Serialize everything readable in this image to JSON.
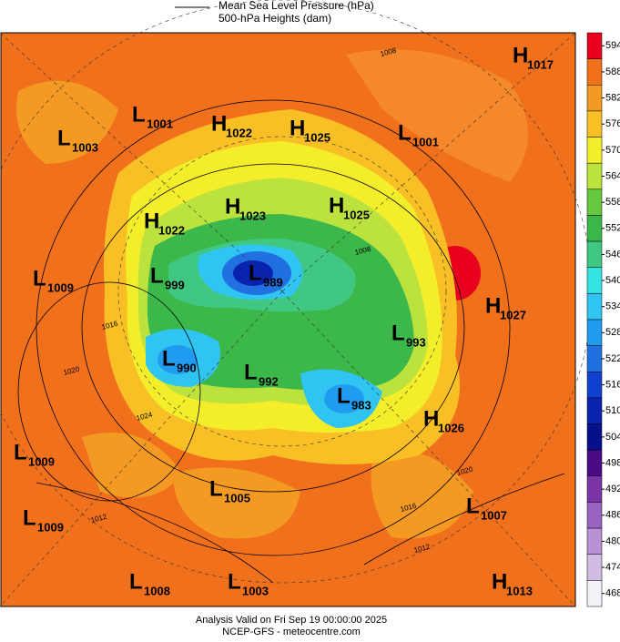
{
  "header": {
    "legend_line": "Mean Sea Level Pressure (hPa)",
    "legend_fill": "500-hPa Heights (dam)"
  },
  "colorbar": {
    "ticks": [
      594,
      588,
      582,
      576,
      570,
      564,
      558,
      552,
      546,
      540,
      534,
      528,
      522,
      516,
      510,
      504,
      498,
      492,
      486,
      480,
      474,
      468
    ],
    "colors": [
      "#e8001e",
      "#f0701c",
      "#f49a22",
      "#f8c024",
      "#f4ee2a",
      "#bce23e",
      "#66c83e",
      "#3cb84a",
      "#40c882",
      "#34e2e2",
      "#30c4f2",
      "#1f9cf0",
      "#2070e0",
      "#1040d0",
      "#0a22b0",
      "#06108a",
      "#4a0a82",
      "#7a34a8",
      "#9a62c2",
      "#b892d4",
      "#d2bce2",
      "#f4f2f8"
    ]
  },
  "centers": [
    {
      "kind": "H",
      "value": 1017
    },
    {
      "kind": "L",
      "value": 1001
    },
    {
      "kind": "L",
      "value": 1003
    },
    {
      "kind": "H",
      "value": 1022
    },
    {
      "kind": "H",
      "value": 1025
    },
    {
      "kind": "L",
      "value": 1001
    },
    {
      "kind": "H",
      "value": 1023
    },
    {
      "kind": "H",
      "value": 1025
    },
    {
      "kind": "H",
      "value": 1022
    },
    {
      "kind": "L",
      "value": 1009
    },
    {
      "kind": "L",
      "value": 999
    },
    {
      "kind": "L",
      "value": 989
    },
    {
      "kind": "H",
      "value": 1027
    },
    {
      "kind": "L",
      "value": 993
    },
    {
      "kind": "L",
      "value": 990
    },
    {
      "kind": "L",
      "value": 992
    },
    {
      "kind": "L",
      "value": 983
    },
    {
      "kind": "H",
      "value": 1026
    },
    {
      "kind": "L",
      "value": 1009
    },
    {
      "kind": "L",
      "value": 1005
    },
    {
      "kind": "L",
      "value": 1007
    },
    {
      "kind": "L",
      "value": 1009
    },
    {
      "kind": "L",
      "value": 1008
    },
    {
      "kind": "L",
      "value": 1003
    },
    {
      "kind": "H",
      "value": 1013
    }
  ],
  "contour_labels": [
    1008,
    1016,
    1020,
    1024,
    1012,
    1016,
    1008,
    1020,
    1012
  ],
  "footer": {
    "valid": "Analysis Valid on Fri Sep 19 00:00:00 2025",
    "source": "NCEP-GFS - meteocentre.com"
  }
}
